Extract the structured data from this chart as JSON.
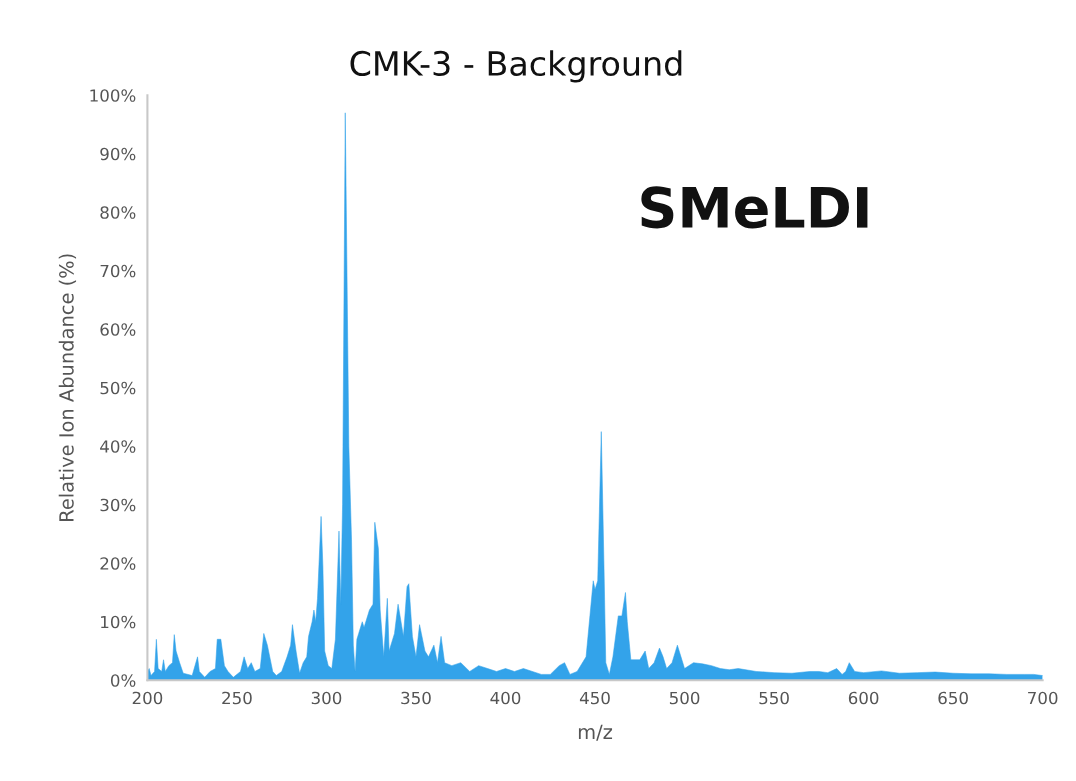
{
  "chart_data": {
    "type": "area",
    "title": "CMK-3 - Background",
    "xlabel": "m/z",
    "ylabel": "Relative Ion Abundance (%)",
    "annotations": [
      "SMeLDI"
    ],
    "xlim": [
      200,
      700
    ],
    "xticks": [
      200,
      250,
      300,
      350,
      400,
      450,
      500,
      550,
      600,
      650,
      700
    ],
    "ylim": [
      0,
      100
    ],
    "yticks": [
      {
        "value": 0,
        "label": "0%"
      },
      {
        "value": 10,
        "label": "10%"
      },
      {
        "value": 20,
        "label": "20%"
      },
      {
        "value": 30,
        "label": "30%"
      },
      {
        "value": 40,
        "label": "40%"
      },
      {
        "value": 50,
        "label": "50%"
      },
      {
        "value": 60,
        "label": "60%"
      },
      {
        "value": 70,
        "label": "70%"
      },
      {
        "value": 80,
        "label": "80%"
      },
      {
        "value": 90,
        "label": "90%"
      },
      {
        "value": 100,
        "label": "100%"
      }
    ],
    "grid": false,
    "legend": false,
    "x": [
      200,
      201,
      202,
      204,
      205,
      206,
      208,
      209,
      210,
      212,
      214,
      215,
      216,
      218,
      220,
      225,
      228,
      229,
      232,
      235,
      238,
      239,
      241,
      243,
      245,
      248,
      252,
      254,
      256,
      258,
      260,
      263,
      265,
      267,
      270,
      272,
      275,
      278,
      280,
      281,
      283,
      285,
      287,
      289,
      290,
      292,
      293,
      294,
      295,
      297,
      298,
      299,
      301,
      303,
      305,
      307,
      308,
      309,
      310.5,
      312.5,
      314,
      315,
      316,
      317,
      318,
      320,
      321,
      324,
      326,
      327,
      329,
      330,
      332,
      334,
      335,
      338,
      340,
      343,
      345,
      346,
      348,
      350,
      352,
      353,
      355,
      357,
      360,
      362,
      364,
      366,
      370,
      375,
      380,
      385,
      390,
      395,
      400,
      405,
      410,
      420,
      425,
      430,
      433,
      436,
      440,
      445,
      449,
      450,
      451.5,
      453.5,
      455,
      456,
      458,
      460,
      463,
      465,
      467,
      468,
      470,
      475,
      478,
      480,
      483,
      486,
      488,
      490,
      493,
      496,
      498,
      500,
      505,
      510,
      515,
      520,
      525,
      530,
      540,
      550,
      560,
      570,
      575,
      580,
      585,
      588,
      590,
      592,
      595,
      600,
      610,
      620,
      630,
      640,
      650,
      660,
      670,
      680,
      690,
      695,
      700
    ],
    "values": [
      1.5,
      2,
      0.8,
      1.5,
      7,
      2,
      1.5,
      3.5,
      1.5,
      2.5,
      3,
      7.8,
      5,
      3,
      1.2,
      0.8,
      4,
      1.5,
      0.5,
      1.5,
      2,
      7,
      7,
      2.5,
      1.5,
      0.5,
      1.5,
      4,
      2,
      3,
      1.5,
      2,
      8,
      6,
      1.5,
      0.8,
      1.5,
      4,
      6,
      9.5,
      5,
      1.2,
      3,
      4,
      7.5,
      10,
      12,
      10,
      14,
      28,
      19.5,
      5,
      2.5,
      2,
      7,
      25.5,
      13,
      30,
      97,
      40,
      24,
      6,
      1.5,
      7,
      8,
      10,
      9,
      12,
      13,
      27,
      22.5,
      12,
      4,
      14,
      5,
      8,
      13,
      7.5,
      16,
      16.5,
      7.5,
      4,
      9.5,
      8,
      5,
      4,
      6,
      3,
      7.5,
      3,
      2.5,
      3,
      1.5,
      2.5,
      2,
      1.5,
      2,
      1.5,
      2,
      1,
      1,
      2.5,
      3,
      1,
      1.5,
      4,
      17,
      15.5,
      17,
      42.5,
      19.5,
      3,
      1,
      4,
      11,
      11,
      15,
      10,
      3.5,
      3.5,
      5,
      2,
      3,
      5.5,
      4,
      2,
      3,
      6,
      4,
      2,
      3,
      2.8,
      2.5,
      2,
      1.8,
      2,
      1.5,
      1.3,
      1.2,
      1.5,
      1.5,
      1.3,
      2,
      1,
      1.5,
      3,
      1.5,
      1.3,
      1.6,
      1.2,
      1.3,
      1.4,
      1.2,
      1.1,
      1.1,
      1,
      1,
      1,
      0.8
    ],
    "color": "#33a3ea"
  }
}
